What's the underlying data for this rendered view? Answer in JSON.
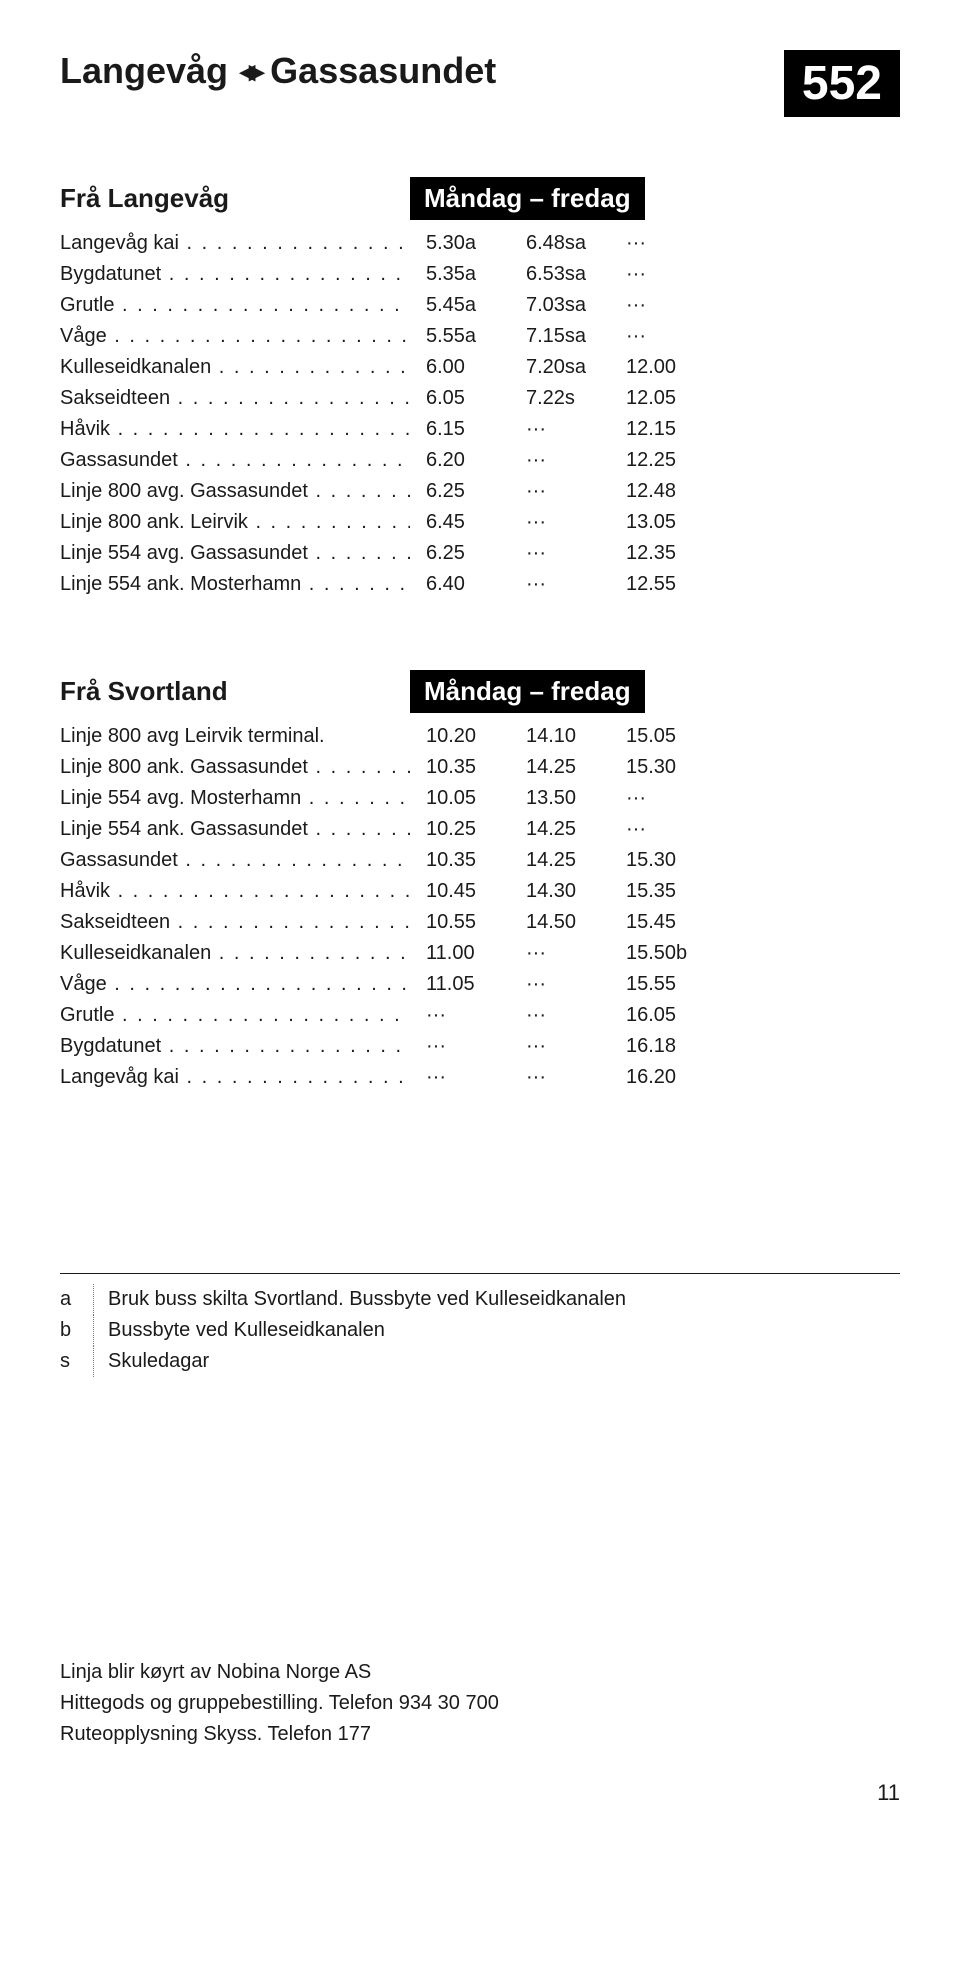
{
  "header": {
    "from": "Langevåg",
    "to": "Gassasundet",
    "badge": "552"
  },
  "table1": {
    "origin": "Frå Langevåg",
    "days": "Måndag – fredag",
    "rows": [
      {
        "stop": "Langevåg kai",
        "t": [
          "5.30a",
          "6.48sa",
          "···"
        ]
      },
      {
        "stop": "Bygdatunet",
        "t": [
          "5.35a",
          "6.53sa",
          "···"
        ]
      },
      {
        "stop": "Grutle",
        "t": [
          "5.45a",
          "7.03sa",
          "···"
        ]
      },
      {
        "stop": "Våge",
        "t": [
          "5.55a",
          "7.15sa",
          "···"
        ]
      },
      {
        "stop": "Kulleseidkanalen",
        "t": [
          "6.00",
          "7.20sa",
          "12.00"
        ]
      },
      {
        "stop": "Sakseidteen",
        "t": [
          "6.05",
          "7.22s",
          "12.05"
        ]
      },
      {
        "stop": "Håvik",
        "t": [
          "6.15",
          "···",
          "12.15"
        ]
      },
      {
        "stop": "Gassasundet",
        "t": [
          "6.20",
          "···",
          "12.25"
        ]
      },
      {
        "stop": "Linje 800 avg. Gassasundet",
        "t": [
          "6.25",
          "···",
          "12.48"
        ]
      },
      {
        "stop": "Linje 800 ank. Leirvik",
        "t": [
          "6.45",
          "···",
          "13.05"
        ]
      },
      {
        "stop": "Linje 554 avg. Gassasundet",
        "t": [
          "6.25",
          "···",
          "12.35"
        ]
      },
      {
        "stop": "Linje 554 ank. Mosterhamn",
        "t": [
          "6.40",
          "···",
          "12.55"
        ]
      }
    ]
  },
  "table2": {
    "origin": "Frå Svortland",
    "days": "Måndag – fredag",
    "rows": [
      {
        "stop": "Linje 800 avg Leirvik terminal.",
        "t": [
          "10.20",
          "14.10",
          "15.05"
        ],
        "nodots": true
      },
      {
        "stop": "Linje 800 ank. Gassasundet",
        "t": [
          "10.35",
          "14.25",
          "15.30"
        ]
      },
      {
        "stop": "Linje 554 avg. Mosterhamn",
        "t": [
          "10.05",
          "13.50",
          "···"
        ]
      },
      {
        "stop": "Linje 554 ank. Gassasundet",
        "t": [
          "10.25",
          "14.25",
          "···"
        ]
      },
      {
        "stop": "Gassasundet",
        "t": [
          "10.35",
          "14.25",
          "15.30"
        ]
      },
      {
        "stop": "Håvik",
        "t": [
          "10.45",
          "14.30",
          "15.35"
        ]
      },
      {
        "stop": "Sakseidteen",
        "t": [
          "10.55",
          "14.50",
          "15.45"
        ]
      },
      {
        "stop": "Kulleseidkanalen",
        "t": [
          "11.00",
          "···",
          "15.50b"
        ]
      },
      {
        "stop": "Våge",
        "t": [
          "11.05",
          "···",
          "15.55"
        ]
      },
      {
        "stop": "Grutle",
        "t": [
          "···",
          "···",
          "16.05"
        ]
      },
      {
        "stop": "Bygdatunet",
        "t": [
          "···",
          "···",
          "16.18"
        ]
      },
      {
        "stop": "Langevåg kai",
        "t": [
          "···",
          "···",
          "16.20"
        ]
      }
    ]
  },
  "notes": [
    {
      "k": "a",
      "v": "Bruk buss skilta Svortland. Bussbyte ved Kulleseidkanalen"
    },
    {
      "k": "b",
      "v": "Bussbyte ved Kulleseidkanalen"
    },
    {
      "k": "s",
      "v": "Skuledagar"
    }
  ],
  "footer": {
    "l1": "Linja blir køyrt av Nobina Norge AS",
    "l2": "Hittegods og gruppebestilling. Telefon 934 30 700",
    "l3": "Ruteopplysning Skyss. Telefon 177"
  },
  "page": "11"
}
